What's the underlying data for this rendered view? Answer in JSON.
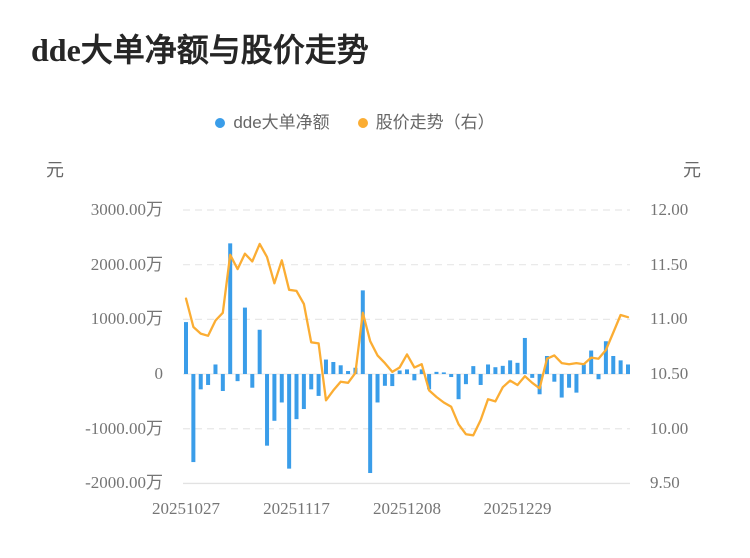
{
  "title": "dde大单净额与股价走势",
  "legend": [
    {
      "label": "dde大单净额",
      "color": "#3a9de9"
    },
    {
      "label": "股价走势（右）",
      "color": "#fbad33"
    }
  ],
  "axis_unit_left": "元",
  "axis_unit_right": "元",
  "chart_data": {
    "type": "bar+line dual-axis",
    "title": "dde大单净额与股价走势",
    "grid": "horizontal dashed gridlines",
    "legend_position": "top-center",
    "x_tick_labels": [
      "20251027",
      "20251117",
      "20251208",
      "20251229"
    ],
    "x_tick_indices": [
      0,
      15,
      30,
      45
    ],
    "left_axis": {
      "unit": "元",
      "ticks": [
        "3000.00万",
        "2000.00万",
        "1000.00万",
        "0",
        "-1000.00万",
        "-2000.00万"
      ],
      "tick_values": [
        3000,
        2000,
        1000,
        0,
        -1000,
        -2000
      ],
      "max": 3000,
      "min": -2000
    },
    "right_axis": {
      "unit": "元",
      "ticks": [
        "12.00",
        "11.50",
        "11.00",
        "10.50",
        "10.00",
        "9.50"
      ],
      "tick_values": [
        12.0,
        11.5,
        11.0,
        10.5,
        10.0,
        9.5
      ],
      "max": 12.0,
      "min": 9.5
    },
    "series": [
      {
        "name": "dde大单净额",
        "type": "bar",
        "axis": "left",
        "unit": "万元",
        "color": "#3a9de9",
        "values": [
          950,
          -1610,
          -280,
          -200,
          175,
          -310,
          2390,
          -130,
          1215,
          -250,
          810,
          -1310,
          -855,
          -520,
          -1730,
          -825,
          -640,
          -280,
          -400,
          265,
          220,
          160,
          55,
          115,
          1530,
          -1810,
          -520,
          -215,
          -220,
          65,
          85,
          -115,
          85,
          -280,
          40,
          30,
          -55,
          -460,
          -185,
          145,
          -200,
          175,
          125,
          150,
          250,
          205,
          660,
          -70,
          -370,
          330,
          -140,
          -430,
          -250,
          -340,
          175,
          430,
          -95,
          600,
          330,
          250,
          175
        ]
      },
      {
        "name": "股价走势（右）",
        "type": "line",
        "axis": "right",
        "unit": "元",
        "color": "#fbad33",
        "values": [
          11.19,
          10.93,
          10.87,
          10.85,
          10.99,
          11.06,
          11.59,
          11.46,
          11.6,
          11.53,
          11.69,
          11.57,
          11.33,
          11.54,
          11.27,
          11.26,
          11.14,
          10.79,
          10.78,
          10.26,
          10.35,
          10.43,
          10.42,
          10.51,
          11.06,
          10.8,
          10.67,
          10.6,
          10.52,
          10.56,
          10.68,
          10.56,
          10.59,
          10.35,
          10.29,
          10.24,
          10.2,
          10.04,
          9.95,
          9.94,
          10.08,
          10.27,
          10.25,
          10.38,
          10.44,
          10.4,
          10.48,
          10.42,
          10.37,
          10.64,
          10.67,
          10.6,
          10.59,
          10.6,
          10.59,
          10.65,
          10.64,
          10.72,
          10.88,
          11.04,
          11.02
        ]
      }
    ]
  }
}
